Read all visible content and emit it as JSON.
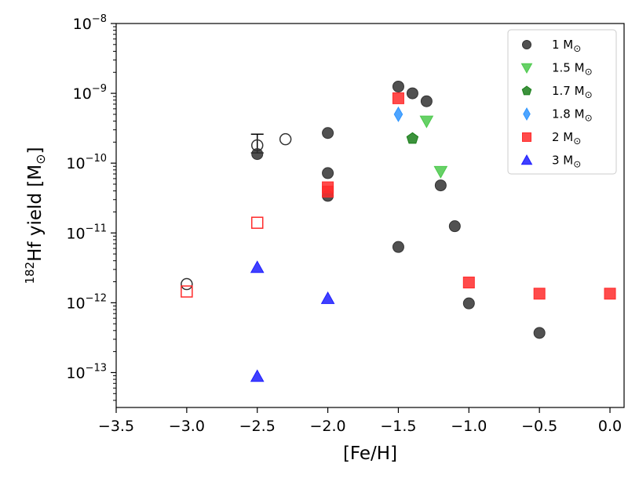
{
  "chart_data": {
    "type": "scatter",
    "xlabel": "[Fe/H]",
    "ylabel": "182Hf yield [M⊙]",
    "ylabel_sup": "182",
    "ylabel_main": "Hf yield [M",
    "ylabel_sun": "⊙",
    "ylabel_end": "]",
    "xlim": [
      -3.5,
      0.1
    ],
    "ylim_log": [
      -13.5,
      -8
    ],
    "x_ticks": [
      {
        "v": -3.5,
        "label": "−3.5"
      },
      {
        "v": -3.0,
        "label": "−3.0"
      },
      {
        "v": -2.5,
        "label": "−2.5"
      },
      {
        "v": -2.0,
        "label": "−2.0"
      },
      {
        "v": -1.5,
        "label": "−1.5"
      },
      {
        "v": -1.0,
        "label": "−1.0"
      },
      {
        "v": -0.5,
        "label": "−0.5"
      },
      {
        "v": 0.0,
        "label": "0.0"
      }
    ],
    "y_ticks": [
      {
        "exp": -13,
        "label": "−13"
      },
      {
        "exp": -12,
        "label": "−12"
      },
      {
        "exp": -11,
        "label": "−11"
      },
      {
        "exp": -10,
        "label": "−10"
      },
      {
        "exp": -9,
        "label": "−9"
      },
      {
        "exp": -8,
        "label": "−8"
      }
    ],
    "legend_position": "top-right",
    "series": [
      {
        "name": "1 M⊙",
        "label": "1 M",
        "marker": "circle",
        "color": "#333333",
        "points": [
          [
            -2.5,
            1.35e-10
          ],
          [
            -2.0,
            2.7e-10
          ],
          [
            -2.0,
            7.2e-11
          ],
          [
            -2.0,
            3.4e-11
          ],
          [
            -1.5,
            1.25e-09
          ],
          [
            -1.4,
            1e-09
          ],
          [
            -1.3,
            7.7e-10
          ],
          [
            -1.2,
            4.8e-11
          ],
          [
            -1.1,
            1.25e-11
          ],
          [
            -1.5,
            6.3e-12
          ],
          [
            -1.0,
            9.8e-13
          ],
          [
            -0.5,
            3.7e-13
          ]
        ],
        "open_points": [
          [
            -3.0,
            1.85e-12
          ],
          [
            -2.5,
            1.8e-10
          ],
          [
            -2.3,
            2.2e-10
          ]
        ]
      },
      {
        "name": "1.5 M⊙",
        "label": "1.5 M",
        "marker": "triangle-down",
        "color": "#4cc94c",
        "points": [
          [
            -1.3,
            4e-10
          ],
          [
            -1.2,
            7.6e-11
          ]
        ]
      },
      {
        "name": "1.7 M⊙",
        "label": "1.7 M",
        "marker": "pentagon",
        "color": "#1a7f1a",
        "points": [
          [
            -1.4,
            2.25e-10
          ]
        ]
      },
      {
        "name": "1.8 M⊙",
        "label": "1.8 M",
        "marker": "diamond",
        "color": "#2f95ff",
        "points": [
          [
            -1.5,
            5e-10
          ]
        ]
      },
      {
        "name": "2 M⊙",
        "label": "2 M",
        "marker": "square",
        "color": "#ff2b2b",
        "points": [
          [
            -1.5,
            8.5e-10
          ],
          [
            -2.0,
            4.5e-11
          ],
          [
            -2.0,
            3.9e-11
          ],
          [
            -1.0,
            1.95e-12
          ],
          [
            -0.5,
            1.35e-12
          ],
          [
            0.0,
            1.35e-12
          ]
        ],
        "open_points": [
          [
            -3.0,
            1.45e-12
          ],
          [
            -2.5,
            1.4e-11
          ]
        ]
      },
      {
        "name": "3 M⊙",
        "label": "3 M",
        "marker": "triangle-up",
        "color": "#1f1fff",
        "points": [
          [
            -2.5,
            3.2e-12
          ],
          [
            -2.0,
            1.15e-12
          ],
          [
            -2.5,
            8.8e-14
          ]
        ]
      }
    ],
    "error_bars": [
      {
        "x": -2.5,
        "low": 1.4e-10,
        "high": 2.6e-10
      }
    ]
  }
}
